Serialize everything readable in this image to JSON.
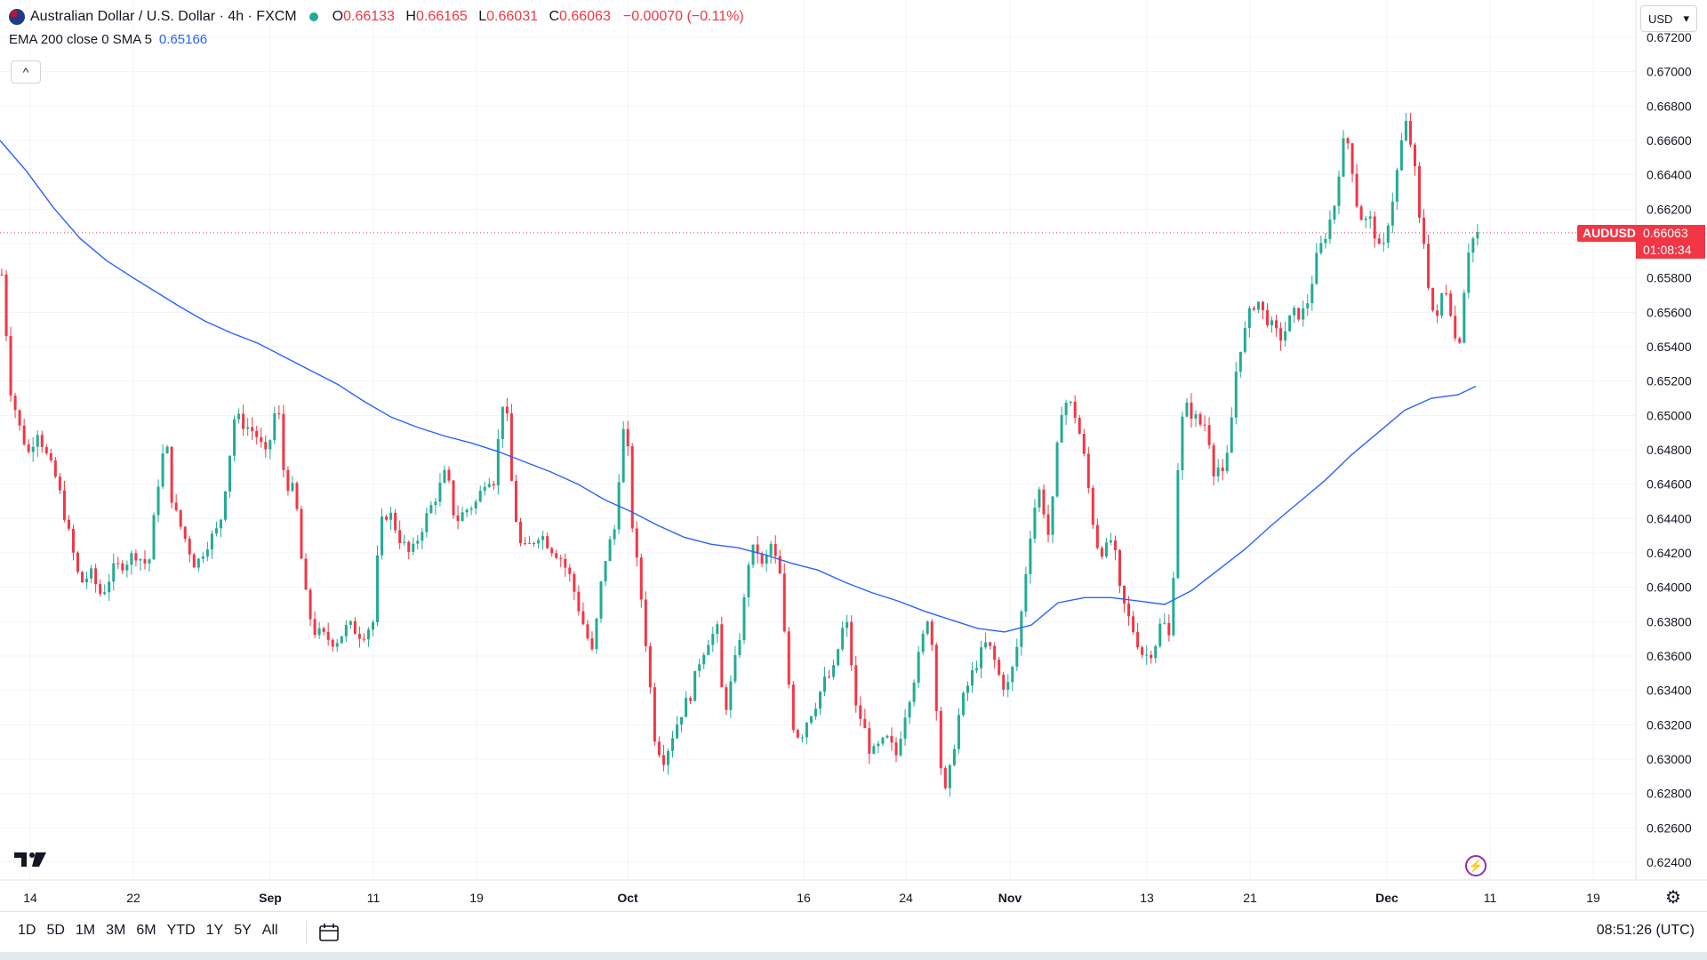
{
  "header": {
    "title": "Australian Dollar / U.S. Dollar · 4h · FXCM",
    "ohlc": [
      {
        "key": "O",
        "value": "0.66133"
      },
      {
        "key": "H",
        "value": "0.66165"
      },
      {
        "key": "L",
        "value": "0.66031"
      },
      {
        "key": "C",
        "value": "0.66063"
      }
    ],
    "change": "−0.00070 (−0.11%)",
    "indicator_label": "EMA 200 close 0 SMA 5",
    "indicator_value": "0.65166",
    "collapse_glyph": "^"
  },
  "currency_button": "USD",
  "last_price": {
    "symbol": "AUDUSD",
    "price": "0.66063",
    "countdown": "01:08:34"
  },
  "bottom_bar": {
    "ranges": [
      "1D",
      "5D",
      "1M",
      "3M",
      "6M",
      "YTD",
      "1Y",
      "5Y",
      "All"
    ],
    "clock": "08:51:26 (UTC)"
  },
  "colors": {
    "up": "#22ab94",
    "down": "#f23645",
    "ema": "#2962ff",
    "grid": "#f0f3fa"
  },
  "icons": [
    "flag-icon",
    "status-dot-icon",
    "chevron-down-icon",
    "tradingview-logo-icon",
    "lightning-icon",
    "gear-icon",
    "calendar-icon"
  ],
  "chart_data": {
    "type": "candlestick",
    "symbol": "AUDUSD",
    "interval": "4h",
    "ylim": [
      0.6232,
      0.6729
    ],
    "y_ticks": [
      "0.67200",
      "0.67000",
      "0.66800",
      "0.66600",
      "0.66400",
      "0.66200",
      "0.66000",
      "0.65800",
      "0.65600",
      "0.65400",
      "0.65200",
      "0.65000",
      "0.64800",
      "0.64600",
      "0.64400",
      "0.64200",
      "0.64000",
      "0.63800",
      "0.63600",
      "0.63400",
      "0.63200",
      "0.63000",
      "0.62800",
      "0.62600",
      "0.62400"
    ],
    "x_ticks": [
      {
        "label": "14",
        "x": 34,
        "bold": false
      },
      {
        "label": "22",
        "x": 150,
        "bold": false
      },
      {
        "label": "Sep",
        "x": 304,
        "bold": true
      },
      {
        "label": "11",
        "x": 420,
        "bold": false
      },
      {
        "label": "19",
        "x": 536,
        "bold": false
      },
      {
        "label": "Oct",
        "x": 706,
        "bold": true
      },
      {
        "label": "16",
        "x": 904,
        "bold": false
      },
      {
        "label": "24",
        "x": 1019,
        "bold": false
      },
      {
        "label": "Nov",
        "x": 1136,
        "bold": true
      },
      {
        "label": "13",
        "x": 1290,
        "bold": false
      },
      {
        "label": "21",
        "x": 1406,
        "bold": false
      },
      {
        "label": "Dec",
        "x": 1560,
        "bold": true
      },
      {
        "label": "11",
        "x": 1676,
        "bold": false
      },
      {
        "label": "19",
        "x": 1792,
        "bold": false
      }
    ],
    "close_path": [
      [
        0,
        0.6582
      ],
      [
        10,
        0.6515
      ],
      [
        20,
        0.6493
      ],
      [
        30,
        0.6478
      ],
      [
        40,
        0.6492
      ],
      [
        52,
        0.6474
      ],
      [
        62,
        0.6462
      ],
      [
        75,
        0.6432
      ],
      [
        88,
        0.6402
      ],
      [
        100,
        0.6408
      ],
      [
        112,
        0.6395
      ],
      [
        125,
        0.641
      ],
      [
        140,
        0.6415
      ],
      [
        150,
        0.642
      ],
      [
        165,
        0.6412
      ],
      [
        178,
        0.647
      ],
      [
        185,
        0.6485
      ],
      [
        192,
        0.6448
      ],
      [
        205,
        0.643
      ],
      [
        218,
        0.6412
      ],
      [
        230,
        0.6425
      ],
      [
        245,
        0.6435
      ],
      [
        255,
        0.6472
      ],
      [
        262,
        0.65
      ],
      [
        272,
        0.6495
      ],
      [
        285,
        0.649
      ],
      [
        298,
        0.6475
      ],
      [
        310,
        0.651
      ],
      [
        318,
        0.6462
      ],
      [
        330,
        0.6455
      ],
      [
        340,
        0.64
      ],
      [
        350,
        0.6375
      ],
      [
        360,
        0.6372
      ],
      [
        375,
        0.6368
      ],
      [
        390,
        0.6378
      ],
      [
        405,
        0.6372
      ],
      [
        418,
        0.638
      ],
      [
        425,
        0.6435
      ],
      [
        435,
        0.6445
      ],
      [
        448,
        0.6428
      ],
      [
        460,
        0.6418
      ],
      [
        475,
        0.6438
      ],
      [
        490,
        0.6455
      ],
      [
        500,
        0.6468
      ],
      [
        510,
        0.6438
      ],
      [
        522,
        0.6445
      ],
      [
        535,
        0.645
      ],
      [
        545,
        0.6465
      ],
      [
        555,
        0.6462
      ],
      [
        562,
        0.651
      ],
      [
        568,
        0.65
      ],
      [
        575,
        0.645
      ],
      [
        585,
        0.642
      ],
      [
        595,
        0.6425
      ],
      [
        605,
        0.6432
      ],
      [
        618,
        0.6423
      ],
      [
        628,
        0.6418
      ],
      [
        640,
        0.6405
      ],
      [
        652,
        0.6382
      ],
      [
        665,
        0.636
      ],
      [
        672,
        0.6395
      ],
      [
        680,
        0.642
      ],
      [
        690,
        0.6435
      ],
      [
        698,
        0.6493
      ],
      [
        704,
        0.648
      ],
      [
        710,
        0.643
      ],
      [
        718,
        0.64
      ],
      [
        725,
        0.6365
      ],
      [
        735,
        0.631
      ],
      [
        745,
        0.63
      ],
      [
        755,
        0.6315
      ],
      [
        765,
        0.6328
      ],
      [
        775,
        0.6338
      ],
      [
        785,
        0.6358
      ],
      [
        795,
        0.637
      ],
      [
        805,
        0.6375
      ],
      [
        812,
        0.6325
      ],
      [
        822,
        0.6348
      ],
      [
        832,
        0.6378
      ],
      [
        840,
        0.6415
      ],
      [
        848,
        0.6425
      ],
      [
        856,
        0.641
      ],
      [
        865,
        0.6425
      ],
      [
        875,
        0.6408
      ],
      [
        882,
        0.636
      ],
      [
        890,
        0.632
      ],
      [
        898,
        0.6312
      ],
      [
        905,
        0.6322
      ],
      [
        915,
        0.6332
      ],
      [
        925,
        0.6345
      ],
      [
        935,
        0.635
      ],
      [
        945,
        0.6375
      ],
      [
        952,
        0.6378
      ],
      [
        960,
        0.633
      ],
      [
        968,
        0.6322
      ],
      [
        978,
        0.6302
      ],
      [
        988,
        0.6308
      ],
      [
        998,
        0.6312
      ],
      [
        1005,
        0.63
      ],
      [
        1015,
        0.6325
      ],
      [
        1025,
        0.6345
      ],
      [
        1035,
        0.6368
      ],
      [
        1042,
        0.6385
      ],
      [
        1048,
        0.636
      ],
      [
        1055,
        0.63
      ],
      [
        1062,
        0.6278
      ],
      [
        1070,
        0.6305
      ],
      [
        1078,
        0.633
      ],
      [
        1088,
        0.6345
      ],
      [
        1098,
        0.6358
      ],
      [
        1108,
        0.6368
      ],
      [
        1115,
        0.636
      ],
      [
        1122,
        0.6348
      ],
      [
        1130,
        0.634
      ],
      [
        1140,
        0.6358
      ],
      [
        1148,
        0.639
      ],
      [
        1155,
        0.6425
      ],
      [
        1160,
        0.6442
      ],
      [
        1166,
        0.6458
      ],
      [
        1172,
        0.6445
      ],
      [
        1178,
        0.6428
      ],
      [
        1185,
        0.6465
      ],
      [
        1190,
        0.6502
      ],
      [
        1196,
        0.6508
      ],
      [
        1205,
        0.6505
      ],
      [
        1212,
        0.649
      ],
      [
        1220,
        0.6468
      ],
      [
        1225,
        0.6445
      ],
      [
        1232,
        0.6425
      ],
      [
        1240,
        0.642
      ],
      [
        1250,
        0.643
      ],
      [
        1256,
        0.64
      ],
      [
        1265,
        0.6385
      ],
      [
        1275,
        0.6372
      ],
      [
        1282,
        0.6362
      ],
      [
        1290,
        0.636
      ],
      [
        1298,
        0.6368
      ],
      [
        1305,
        0.6382
      ],
      [
        1310,
        0.6375
      ],
      [
        1315,
        0.6368
      ],
      [
        1320,
        0.644
      ],
      [
        1325,
        0.6492
      ],
      [
        1332,
        0.6505
      ],
      [
        1340,
        0.65
      ],
      [
        1348,
        0.6495
      ],
      [
        1356,
        0.6495
      ],
      [
        1362,
        0.6468
      ],
      [
        1368,
        0.647
      ],
      [
        1375,
        0.6462
      ],
      [
        1382,
        0.6492
      ],
      [
        1390,
        0.6535
      ],
      [
        1398,
        0.6548
      ],
      [
        1405,
        0.6562
      ],
      [
        1412,
        0.6568
      ],
      [
        1418,
        0.656
      ],
      [
        1425,
        0.6555
      ],
      [
        1432,
        0.6548
      ],
      [
        1440,
        0.6545
      ],
      [
        1448,
        0.6555
      ],
      [
        1455,
        0.656
      ],
      [
        1462,
        0.6558
      ],
      [
        1470,
        0.6568
      ],
      [
        1478,
        0.659
      ],
      [
        1485,
        0.66
      ],
      [
        1492,
        0.661
      ],
      [
        1500,
        0.6625
      ],
      [
        1506,
        0.6652
      ],
      [
        1512,
        0.6664
      ],
      [
        1518,
        0.6648
      ],
      [
        1525,
        0.662
      ],
      [
        1532,
        0.6612
      ],
      [
        1538,
        0.6615
      ],
      [
        1545,
        0.6605
      ],
      [
        1552,
        0.659
      ],
      [
        1558,
        0.661
      ],
      [
        1565,
        0.6628
      ],
      [
        1572,
        0.665
      ],
      [
        1578,
        0.6672
      ],
      [
        1584,
        0.666
      ],
      [
        1590,
        0.664
      ],
      [
        1595,
        0.661
      ],
      [
        1600,
        0.66
      ],
      [
        1605,
        0.6575
      ],
      [
        1610,
        0.656
      ],
      [
        1615,
        0.6555
      ],
      [
        1622,
        0.6578
      ],
      [
        1628,
        0.6568
      ],
      [
        1633,
        0.655
      ],
      [
        1638,
        0.6535
      ],
      [
        1644,
        0.657
      ],
      [
        1650,
        0.6598
      ],
      [
        1656,
        0.6604
      ],
      [
        1662,
        0.6607
      ]
    ],
    "ema_200": [
      [
        0,
        0.666
      ],
      [
        30,
        0.6642
      ],
      [
        60,
        0.6621
      ],
      [
        90,
        0.6603
      ],
      [
        120,
        0.659
      ],
      [
        150,
        0.658
      ],
      [
        175,
        0.6572
      ],
      [
        200,
        0.6564
      ],
      [
        230,
        0.6555
      ],
      [
        260,
        0.6548
      ],
      [
        290,
        0.6542
      ],
      [
        320,
        0.6534
      ],
      [
        350,
        0.6526
      ],
      [
        380,
        0.6518
      ],
      [
        410,
        0.6508
      ],
      [
        440,
        0.6499
      ],
      [
        470,
        0.6493
      ],
      [
        500,
        0.6488
      ],
      [
        530,
        0.6484
      ],
      [
        560,
        0.6479
      ],
      [
        590,
        0.6473
      ],
      [
        620,
        0.6467
      ],
      [
        650,
        0.646
      ],
      [
        680,
        0.6451
      ],
      [
        710,
        0.6444
      ],
      [
        740,
        0.6436
      ],
      [
        770,
        0.6429
      ],
      [
        800,
        0.6425
      ],
      [
        830,
        0.6423
      ],
      [
        860,
        0.6419
      ],
      [
        890,
        0.6414
      ],
      [
        920,
        0.641
      ],
      [
        950,
        0.6403
      ],
      [
        980,
        0.6397
      ],
      [
        1010,
        0.6392
      ],
      [
        1040,
        0.6386
      ],
      [
        1070,
        0.6381
      ],
      [
        1100,
        0.6376
      ],
      [
        1130,
        0.6374
      ],
      [
        1160,
        0.6378
      ],
      [
        1190,
        0.6391
      ],
      [
        1220,
        0.6394
      ],
      [
        1250,
        0.6394
      ],
      [
        1280,
        0.6392
      ],
      [
        1310,
        0.639
      ],
      [
        1340,
        0.6398
      ],
      [
        1370,
        0.641
      ],
      [
        1400,
        0.6422
      ],
      [
        1430,
        0.6436
      ],
      [
        1460,
        0.6449
      ],
      [
        1490,
        0.6462
      ],
      [
        1520,
        0.6477
      ],
      [
        1550,
        0.649
      ],
      [
        1580,
        0.6503
      ],
      [
        1610,
        0.651
      ],
      [
        1640,
        0.6512
      ],
      [
        1660,
        0.6517
      ]
    ],
    "last_price": 0.66063
  }
}
